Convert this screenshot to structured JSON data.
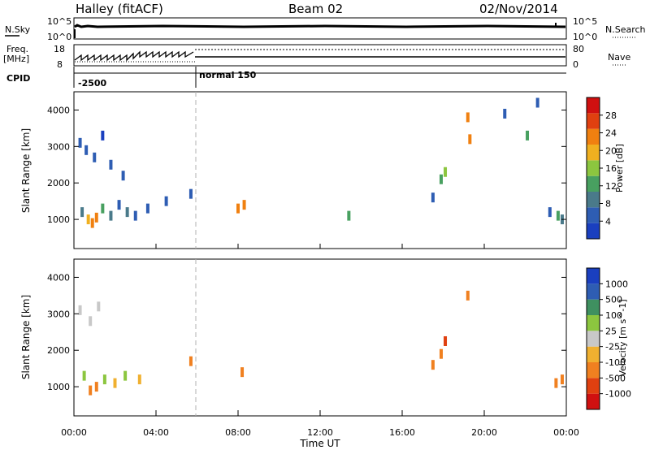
{
  "header": {
    "station": "Halley (fitACF)",
    "beam": "Beam 02",
    "date": "02/Nov/2014"
  },
  "panels": {
    "nsky": {
      "left_label": "N.Sky",
      "right_label": "N.Search",
      "left_ticks": [
        "10^5",
        "10^0"
      ],
      "right_ticks": [
        "10^5",
        "10^0"
      ]
    },
    "freq": {
      "left_label_1": "Freq.",
      "left_label_2": "[MHz]",
      "right_label": "Nave",
      "left_ticks": [
        "18",
        "8"
      ],
      "right_ticks": [
        "80",
        "0"
      ]
    },
    "cpid": {
      "label": "CPID",
      "segments": [
        "-2500",
        "normal 150"
      ]
    }
  },
  "colors": {
    "power_scale": [
      "#1a3fbf",
      "#2e5db3",
      "#4a7a8a",
      "#48a060",
      "#8cc63f",
      "#f0b020",
      "#f08010",
      "#e04010",
      "#d01010"
    ],
    "velocity_scale": [
      "#d01010",
      "#e04010",
      "#f08020",
      "#f0b030",
      "#c8c8c8",
      "#8cc63f",
      "#3f9060",
      "#2e5db3",
      "#1a3fbf"
    ],
    "grid_dash": "#b0b0b0"
  },
  "chart_data": [
    {
      "type": "heatmap",
      "name": "power",
      "xlabel": "",
      "ylabel": "Slant Range [km]",
      "x_ticks": [
        "00:00",
        "04:00",
        "08:00",
        "12:00",
        "16:00",
        "20:00",
        "00:00"
      ],
      "y_ticks": [
        1000,
        2000,
        3000,
        4000
      ],
      "ylim": [
        200,
        4500
      ],
      "colorbar": {
        "label": "Power [dB]",
        "ticks": [
          4,
          8,
          12,
          16,
          20,
          24,
          28
        ],
        "range": [
          0,
          30
        ]
      },
      "mode_change_time_h": 6.0,
      "cells": [
        {
          "t": 0.3,
          "r": 3100,
          "v": 6
        },
        {
          "t": 0.6,
          "r": 2900,
          "v": 4
        },
        {
          "t": 1.0,
          "r": 2700,
          "v": 5
        },
        {
          "t": 1.4,
          "r": 3300,
          "v": 3
        },
        {
          "t": 1.8,
          "r": 2500,
          "v": 4
        },
        {
          "t": 2.4,
          "r": 2200,
          "v": 5
        },
        {
          "t": 0.4,
          "r": 1200,
          "v": 8
        },
        {
          "t": 0.7,
          "r": 1000,
          "v": 18
        },
        {
          "t": 0.9,
          "r": 900,
          "v": 22
        },
        {
          "t": 1.1,
          "r": 1050,
          "v": 20
        },
        {
          "t": 1.4,
          "r": 1300,
          "v": 10
        },
        {
          "t": 1.8,
          "r": 1100,
          "v": 7
        },
        {
          "t": 2.2,
          "r": 1400,
          "v": 6
        },
        {
          "t": 2.6,
          "r": 1200,
          "v": 9
        },
        {
          "t": 3.0,
          "r": 1100,
          "v": 5
        },
        {
          "t": 3.6,
          "r": 1300,
          "v": 6
        },
        {
          "t": 4.5,
          "r": 1500,
          "v": 5
        },
        {
          "t": 5.7,
          "r": 1700,
          "v": 5
        },
        {
          "t": 8.0,
          "r": 1300,
          "v": 22
        },
        {
          "t": 8.3,
          "r": 1400,
          "v": 20
        },
        {
          "t": 13.4,
          "r": 1100,
          "v": 12
        },
        {
          "t": 17.5,
          "r": 1600,
          "v": 6
        },
        {
          "t": 17.9,
          "r": 2100,
          "v": 12
        },
        {
          "t": 18.1,
          "r": 2300,
          "v": 14
        },
        {
          "t": 19.3,
          "r": 3200,
          "v": 20
        },
        {
          "t": 19.2,
          "r": 3800,
          "v": 20
        },
        {
          "t": 21.0,
          "r": 3900,
          "v": 4
        },
        {
          "t": 22.1,
          "r": 3300,
          "v": 10
        },
        {
          "t": 22.6,
          "r": 4200,
          "v": 4
        },
        {
          "t": 23.2,
          "r": 1200,
          "v": 6
        },
        {
          "t": 23.6,
          "r": 1100,
          "v": 10
        },
        {
          "t": 23.8,
          "r": 1000,
          "v": 8
        }
      ]
    },
    {
      "type": "heatmap",
      "name": "velocity",
      "xlabel": "Time UT",
      "ylabel": "Slant Range [km]",
      "x_ticks": [
        "00:00",
        "04:00",
        "08:00",
        "12:00",
        "16:00",
        "20:00",
        "00:00"
      ],
      "y_ticks": [
        1000,
        2000,
        3000,
        4000
      ],
      "ylim": [
        200,
        4500
      ],
      "colorbar": {
        "label": "Velocity [m s^-1]",
        "ticks": [
          "-1000",
          "-500",
          "-100",
          "-25",
          "25",
          "100",
          "500",
          "1000"
        ]
      },
      "cells": [
        {
          "t": 0.3,
          "r": 3100,
          "v": 0
        },
        {
          "t": 0.8,
          "r": 2800,
          "v": 0
        },
        {
          "t": 1.2,
          "r": 3200,
          "v": 20
        },
        {
          "t": 0.5,
          "r": 1300,
          "v": 80
        },
        {
          "t": 0.8,
          "r": 900,
          "v": -300
        },
        {
          "t": 1.1,
          "r": 1000,
          "v": -150
        },
        {
          "t": 1.5,
          "r": 1200,
          "v": 80
        },
        {
          "t": 2.0,
          "r": 1100,
          "v": -60
        },
        {
          "t": 2.5,
          "r": 1300,
          "v": 60
        },
        {
          "t": 3.2,
          "r": 1200,
          "v": -80
        },
        {
          "t": 5.7,
          "r": 1700,
          "v": -200
        },
        {
          "t": 8.2,
          "r": 1400,
          "v": -300
        },
        {
          "t": 17.5,
          "r": 1600,
          "v": -300
        },
        {
          "t": 18.1,
          "r": 2250,
          "v": -800
        },
        {
          "t": 17.9,
          "r": 1900,
          "v": -400
        },
        {
          "t": 19.2,
          "r": 3500,
          "v": -300
        },
        {
          "t": 23.5,
          "r": 1100,
          "v": -400
        },
        {
          "t": 23.8,
          "r": 1200,
          "v": -300
        }
      ]
    }
  ]
}
